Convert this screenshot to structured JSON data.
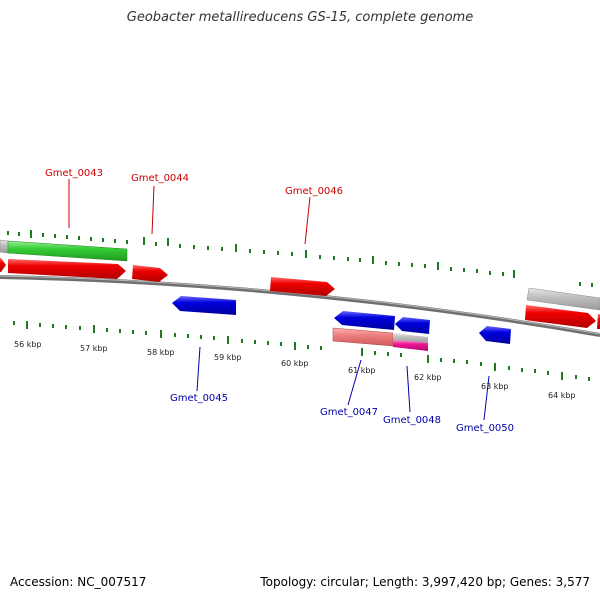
{
  "title": "Geobacter metallireducens GS-15, complete genome",
  "footer": {
    "accession": "Accession: NC_007517",
    "summary": "Topology: circular; Length: 3,997,420 bp; Genes: 3,577"
  },
  "colors": {
    "backbone": "#707070",
    "forward_gene": "#ee0000",
    "reverse_gene": "#0000dd",
    "green_feature": "#33cc33",
    "gray_feature": "#c0c0c0",
    "salmon_feature": "#ee7f7f",
    "pink_feature": "#ee1493",
    "tick_green": "#1f7a1f",
    "forward_label": "#cc0000",
    "reverse_label": "#0000aa"
  },
  "scale_labels": [
    "56 kbp",
    "57 kbp",
    "58 kbp",
    "59 kbp",
    "60 kbp",
    "61 kbp",
    "62 kbp",
    "63 kbp",
    "64 kbp"
  ],
  "forward_genes": [
    {
      "name": "Gmet_0043",
      "icon": "red-arrow-right"
    },
    {
      "name": "Gmet_0044",
      "icon": "red-arrow-right"
    },
    {
      "name": "Gmet_0046",
      "icon": "red-arrow-right"
    }
  ],
  "reverse_genes": [
    {
      "name": "Gmet_0045",
      "icon": "blue-arrow-left"
    },
    {
      "name": "Gmet_0047",
      "icon": "blue-arrow-left"
    },
    {
      "name": "Gmet_0048",
      "icon": "blue-arrow-left"
    },
    {
      "name": "Gmet_0050",
      "icon": "blue-arrow-left"
    }
  ]
}
